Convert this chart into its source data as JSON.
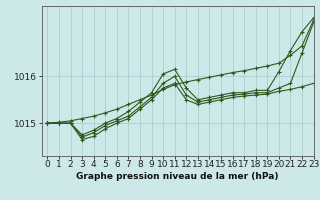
{
  "title": "Graphe pression niveau de la mer (hPa)",
  "bg_color": "#cce8e8",
  "grid_color": "#aad0d0",
  "line_color": "#2d5a1b",
  "marker": "+",
  "markersize": 3,
  "linewidth": 0.8,
  "xlim": [
    -0.5,
    23
  ],
  "ylim": [
    1014.3,
    1017.5
  ],
  "yticks": [
    1015,
    1016
  ],
  "xticks": [
    0,
    1,
    2,
    3,
    4,
    5,
    6,
    7,
    8,
    9,
    10,
    11,
    12,
    13,
    14,
    15,
    16,
    17,
    18,
    19,
    20,
    21,
    22,
    23
  ],
  "xlabel_fontsize": 6.5,
  "ylabel_fontsize": 6.5,
  "title_fontsize": 6.5,
  "lines": [
    {
      "x": [
        0,
        1,
        2,
        3,
        4,
        5,
        6,
        7,
        8,
        9,
        10,
        11,
        12,
        13,
        14,
        15,
        16,
        17,
        18,
        19,
        20,
        21,
        22,
        23
      ],
      "y": [
        1015.0,
        1015.0,
        1015.0,
        1014.75,
        1014.85,
        1015.0,
        1015.1,
        1015.25,
        1015.45,
        1015.65,
        1016.05,
        1016.15,
        1015.75,
        1015.5,
        1015.55,
        1015.6,
        1015.65,
        1015.65,
        1015.7,
        1015.7,
        1016.1,
        1016.55,
        1016.95,
        1017.25
      ]
    },
    {
      "x": [
        0,
        1,
        2,
        3,
        4,
        5,
        6,
        7,
        8,
        9,
        10,
        11,
        12,
        13,
        14,
        15,
        16,
        17,
        18,
        19,
        20,
        21,
        22,
        23
      ],
      "y": [
        1015.0,
        1015.0,
        1015.0,
        1014.7,
        1014.8,
        1014.95,
        1015.05,
        1015.15,
        1015.35,
        1015.55,
        1015.85,
        1016.0,
        1015.6,
        1015.45,
        1015.5,
        1015.55,
        1015.6,
        1015.62,
        1015.65,
        1015.65,
        1015.75,
        1015.85,
        1016.5,
        1017.15
      ]
    },
    {
      "x": [
        0,
        1,
        2,
        3,
        4,
        5,
        6,
        7,
        8,
        9,
        10,
        11,
        12,
        13,
        14,
        15,
        16,
        17,
        18,
        19,
        20,
        21,
        22,
        23
      ],
      "y": [
        1015.0,
        1015.0,
        1015.0,
        1014.65,
        1014.72,
        1014.88,
        1015.0,
        1015.1,
        1015.3,
        1015.5,
        1015.75,
        1015.85,
        1015.5,
        1015.4,
        1015.45,
        1015.5,
        1015.55,
        1015.58,
        1015.6,
        1015.62,
        1015.68,
        1015.72,
        1015.78,
        1015.85
      ]
    },
    {
      "x": [
        0,
        1,
        2,
        3,
        4,
        5,
        6,
        7,
        8,
        9,
        10,
        11,
        12,
        13,
        14,
        15,
        16,
        17,
        18,
        19,
        20,
        21,
        22,
        23
      ],
      "y": [
        1015.0,
        1015.02,
        1015.05,
        1015.1,
        1015.15,
        1015.22,
        1015.3,
        1015.4,
        1015.5,
        1015.6,
        1015.72,
        1015.82,
        1015.88,
        1015.93,
        1015.98,
        1016.03,
        1016.08,
        1016.12,
        1016.17,
        1016.22,
        1016.28,
        1016.45,
        1016.65,
        1017.2
      ]
    }
  ]
}
